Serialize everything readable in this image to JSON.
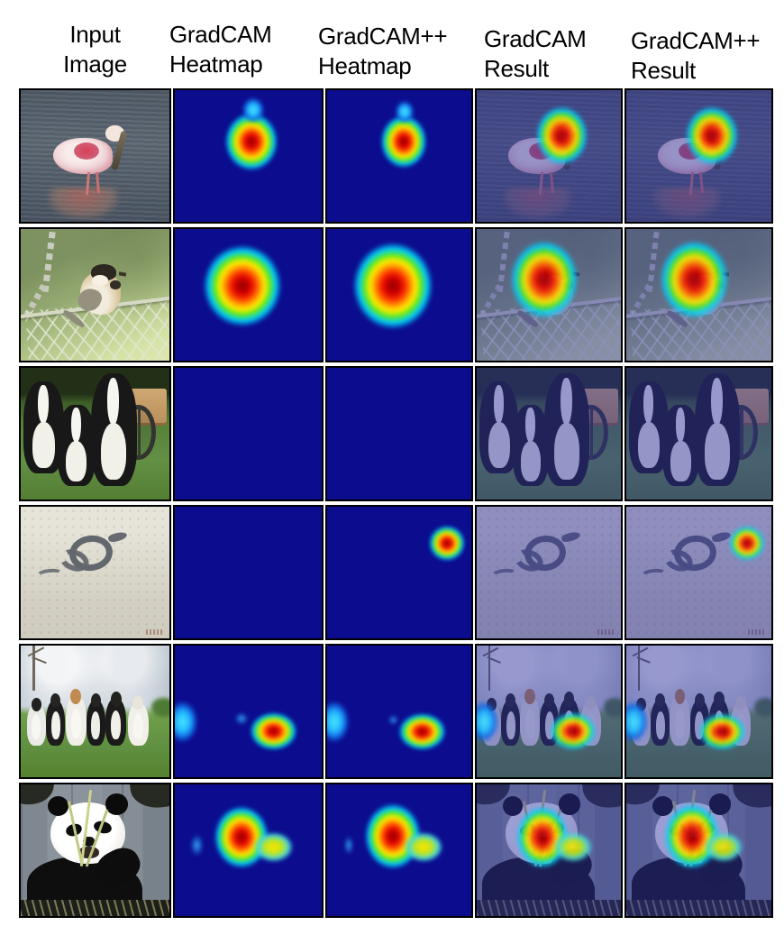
{
  "figure": {
    "title_columns": [
      {
        "line1": "Input",
        "line2": "Image"
      },
      {
        "line1": "GradCAM",
        "line2": "Heatmap"
      },
      {
        "line1": "GradCAM++",
        "line2": "Heatmap"
      },
      {
        "line1": "GradCAM",
        "line2": "Result"
      },
      {
        "line1": "GradCAM++",
        "line2": "Result"
      }
    ],
    "rows": [
      {
        "id": "spoonbill",
        "subject": "pink roseate spoonbill wading in gray water",
        "gradcam_heatmap": "single central blob",
        "gradcampp_heatmap": "single central blob",
        "gradcam_result": "heatmap over bird head and neck",
        "gradcampp_result": "heatmap over bird head and neck"
      },
      {
        "id": "chickadee",
        "subject": "small black-capped bird perched on chain-link net, green blurred background",
        "gradcam_heatmap": "large blob left of center",
        "gradcampp_heatmap": "large blob left of center",
        "gradcam_result": "heatmap over bird body",
        "gradcampp_result": "heatmap over bird body"
      },
      {
        "id": "puppies",
        "subject": "border collie puppies in grass with wooden cart wheel",
        "gradcam_heatmap": "empty",
        "gradcampp_heatmap": "empty",
        "gradcam_result": "no heatmap, blue tinted image",
        "gradcampp_result": "no heatmap, blue tinted image"
      },
      {
        "id": "snake",
        "subject": "snake coiled on pale sand",
        "gradcam_heatmap": "empty",
        "gradcampp_heatmap": "small blob at top right",
        "gradcam_result": "no heatmap, blue tinted image",
        "gradcampp_result": "small blob at top right"
      },
      {
        "id": "dogs",
        "subject": "group of six dogs sitting on grass under cloudy sky",
        "gradcam_heatmap": "main blob right of center plus cyan blob at left edge and faint middle dot",
        "gradcampp_heatmap": "main blob right of center plus cyan blob at left edge and fainter middle dot",
        "gradcam_result": "heatmap over rightmost dogs and left dog",
        "gradcampp_result": "heatmap over rightmost dogs and left dog"
      },
      {
        "id": "panda",
        "subject": "giant panda eating bamboo in front of gray wall",
        "gradcam_heatmap": "blob over face with yellow tail to the right and faint cyan dot at left",
        "gradcampp_heatmap": "blob over face with yellow tail to the right and faint cyan dot at left",
        "gradcam_result": "heatmap over panda face",
        "gradcampp_result": "heatmap over panda face"
      }
    ],
    "colors": {
      "page_background": "#ffffff",
      "panel_border": "#000000",
      "heatmap_background": "#0c0c8f",
      "jet_core_red": "#d40000",
      "jet_orange": "#ffa400",
      "jet_yellow": "#ffee00",
      "jet_green": "#5ce81e",
      "jet_cyan": "#00d0ff",
      "result_tint": "rgba(44,47,160,0.47)",
      "header_text": "#000000"
    }
  }
}
